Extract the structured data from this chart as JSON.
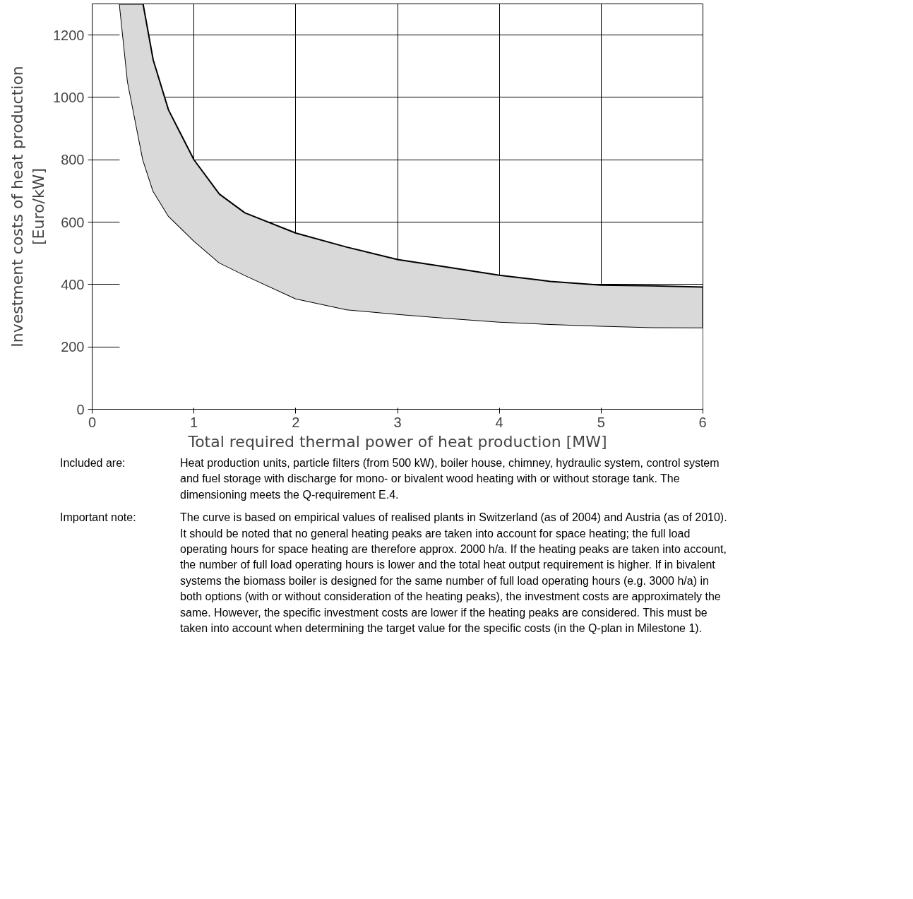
{
  "chart_data": {
    "type": "area",
    "stacked": true,
    "xlabel": "Total required thermal power of heat production [MW]",
    "ylabel": "Investment costs of heat production\n[Euro/kW]",
    "x": [
      0.27,
      0.35,
      0.5,
      0.6,
      0.75,
      1,
      1.25,
      1.5,
      2,
      2.5,
      3,
      3.5,
      4,
      4.5,
      5,
      5.5,
      6
    ],
    "series": [
      {
        "color": "#ffffff",
        "values": [
          1300,
          1050,
          800,
          700,
          620,
          540,
          470,
          430,
          355,
          320,
          305,
          292,
          280,
          273,
          267,
          263,
          262
        ]
      },
      {
        "color": "#d9d9d9",
        "values": [
          0,
          250,
          500,
          420,
          340,
          260,
          220,
          200,
          210,
          200,
          175,
          163,
          150,
          137,
          131,
          133,
          130
        ]
      }
    ],
    "xlim": [
      0,
      6
    ],
    "ylim": [
      0,
      1300
    ],
    "xticks": [
      0,
      1,
      2,
      3,
      4,
      5,
      6
    ],
    "yticks": [
      0,
      200,
      400,
      600,
      800,
      1000,
      1200
    ],
    "grid": true,
    "annotations": [
      "Included are:",
      "Heat production units, particle filters (from 500 kW), boiler house, chimney, hydraulic system, control system and fuel storage with discharge for mono- or bivalent wood heating with or without storage tank. The dimensioning meets the Q-requirement E.4.",
      "Important note:",
      "The curve is based on empirical values of realised plants in Switzerland (as of 2004) and Austria (as of 2010). It should be noted that no general heating peaks are taken into account for space heating; the full load operating hours for space heating are therefore approx. 2000 h/a. If the heating peaks are taken into account, the number of full load operating hours is lower and the total heat output requirement is higher. If in bivalent systems the biomass boiler is designed for the same number of full load operating hours (e.g. 3000 h/a) in both options (with or without consideration of the heating peaks), the investment costs are approximately the same. However, the specific investment costs are lower if the heating peaks are considered. This must be taken into account when determining the target value for the specific costs (in the Q-plan in Milestone 1)."
    ]
  }
}
